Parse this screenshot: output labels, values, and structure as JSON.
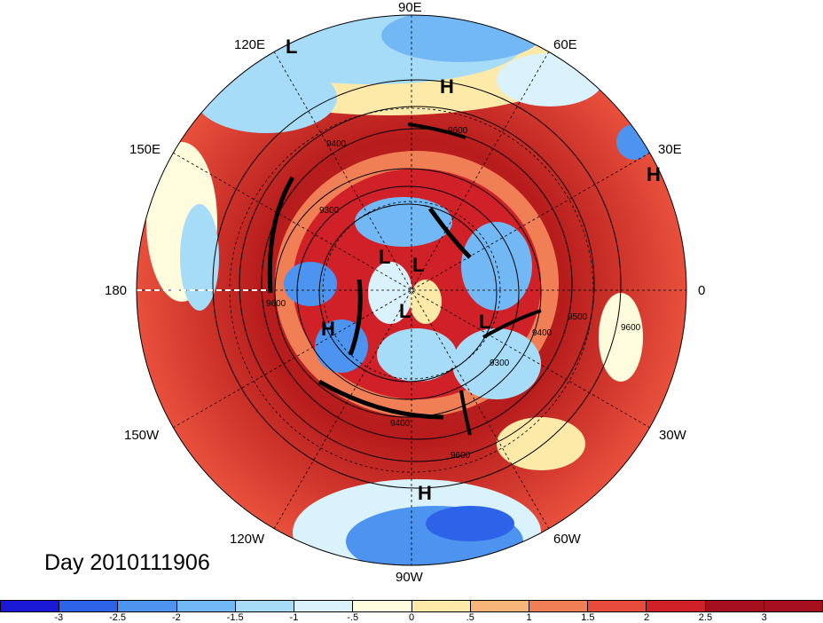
{
  "title": "Day 2010111906",
  "longitude_labels": [
    {
      "text": "90E",
      "name": "lon-label-90e"
    },
    {
      "text": "60E",
      "name": "lon-label-60e"
    },
    {
      "text": "120E",
      "name": "lon-label-120e"
    },
    {
      "text": "30E",
      "name": "lon-label-30e"
    },
    {
      "text": "150E",
      "name": "lon-label-150e"
    },
    {
      "text": "180",
      "name": "lon-label-180"
    },
    {
      "text": "0",
      "name": "lon-label-0"
    },
    {
      "text": "150W",
      "name": "lon-label-150w"
    },
    {
      "text": "30W",
      "name": "lon-label-30w"
    },
    {
      "text": "120W",
      "name": "lon-label-120w"
    },
    {
      "text": "60W",
      "name": "lon-label-60w"
    },
    {
      "text": "90W",
      "name": "lon-label-90w"
    }
  ],
  "pressure_centers": [
    "L",
    "H",
    "H",
    "L",
    "L",
    "L",
    "H",
    "L",
    "H"
  ],
  "contour_labels": [
    "9600",
    "9400",
    "9300",
    "9400",
    "9500",
    "9600",
    "9400",
    "9600",
    "9300",
    "9600"
  ],
  "colorbar": {
    "ticks": [
      "-3",
      "-2.5",
      "-2",
      "-1.5",
      "-1",
      "-.5",
      "0",
      ".5",
      "1",
      "1.5",
      "2",
      "2.5",
      "3"
    ],
    "colors": [
      "#1a1ad6",
      "#2c63e8",
      "#4d94f0",
      "#72b8f5",
      "#a6dcf8",
      "#d9f2fb",
      "#fefcdc",
      "#fde9a8",
      "#f7b579",
      "#f07f55",
      "#e84a3c",
      "#cf2127",
      "#a50f1e"
    ]
  }
}
